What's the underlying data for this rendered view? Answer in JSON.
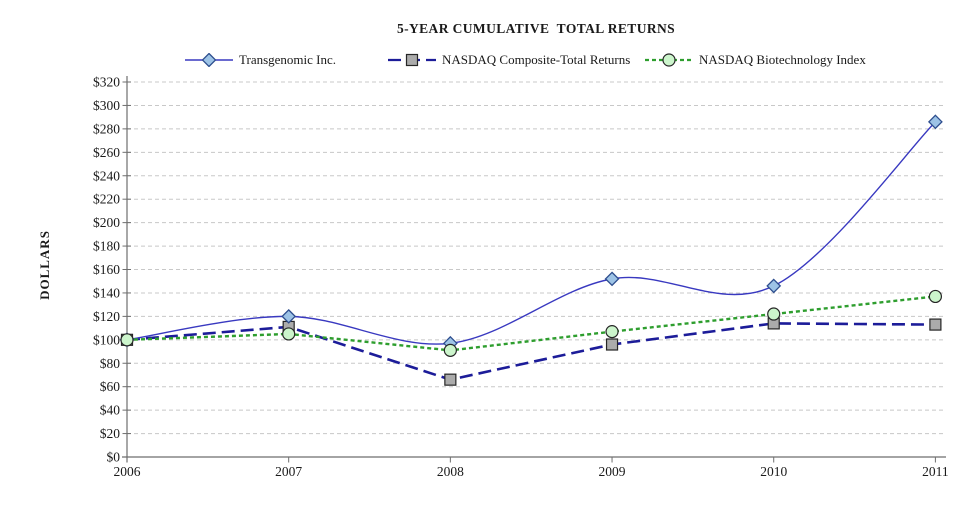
{
  "title": "5-YEAR CUMULATIVE  TOTAL RETURNS",
  "y_axis_label": "DOLLARS",
  "chart_data": {
    "type": "line",
    "title": "5-YEAR CUMULATIVE  TOTAL RETURNS",
    "xlabel": "",
    "ylabel": "DOLLARS",
    "categories": [
      "2006",
      "2007",
      "2008",
      "2009",
      "2010",
      "2011"
    ],
    "series": [
      {
        "name": "Transgenomic Inc.",
        "values": [
          100,
          120,
          97,
          152,
          146,
          286
        ],
        "line_color": "#3939c0",
        "line_style": "solid",
        "line_width": 1.4,
        "smooth": true,
        "marker": "diamond",
        "marker_fill": "#9dc3e6",
        "marker_stroke": "#2e4e8e"
      },
      {
        "name": "NASDAQ Composite-Total Returns",
        "values": [
          100,
          111,
          66,
          96,
          114,
          113
        ],
        "line_color": "#1c1c99",
        "line_style": "long-dash",
        "line_width": 2.6,
        "smooth": false,
        "marker": "square",
        "marker_fill": "#ababab",
        "marker_stroke": "#262626"
      },
      {
        "name": "NASDAQ Biotechnology Index",
        "values": [
          100,
          105,
          91,
          107,
          122,
          137
        ],
        "line_color": "#2e9e2e",
        "line_style": "short-dash",
        "line_width": 2.4,
        "smooth": false,
        "marker": "circle",
        "marker_fill": "#ccf5cc",
        "marker_stroke": "#262626"
      }
    ],
    "ylim": [
      0,
      320
    ],
    "ytick_step": 20,
    "ytick_values": [
      0,
      20,
      40,
      60,
      80,
      100,
      120,
      140,
      160,
      180,
      200,
      220,
      240,
      260,
      280,
      300,
      320
    ],
    "ytick_labels": [
      "$0",
      "$20",
      "$40",
      "$60",
      "$80",
      "$100",
      "$120",
      "$140",
      "$160",
      "$180",
      "$200",
      "$220",
      "$240",
      "$260",
      "$280",
      "$300",
      "$320"
    ],
    "xtick_labels": [
      "2006",
      "2007",
      "2008",
      "2009",
      "2010",
      "2011"
    ],
    "grid": "horizontal-dashed",
    "legend_position": "top"
  },
  "colors": {
    "grid": "#c8c8c8",
    "axis": "#6e6e6e",
    "text": "#1a1a1a",
    "background": "#ffffff"
  }
}
